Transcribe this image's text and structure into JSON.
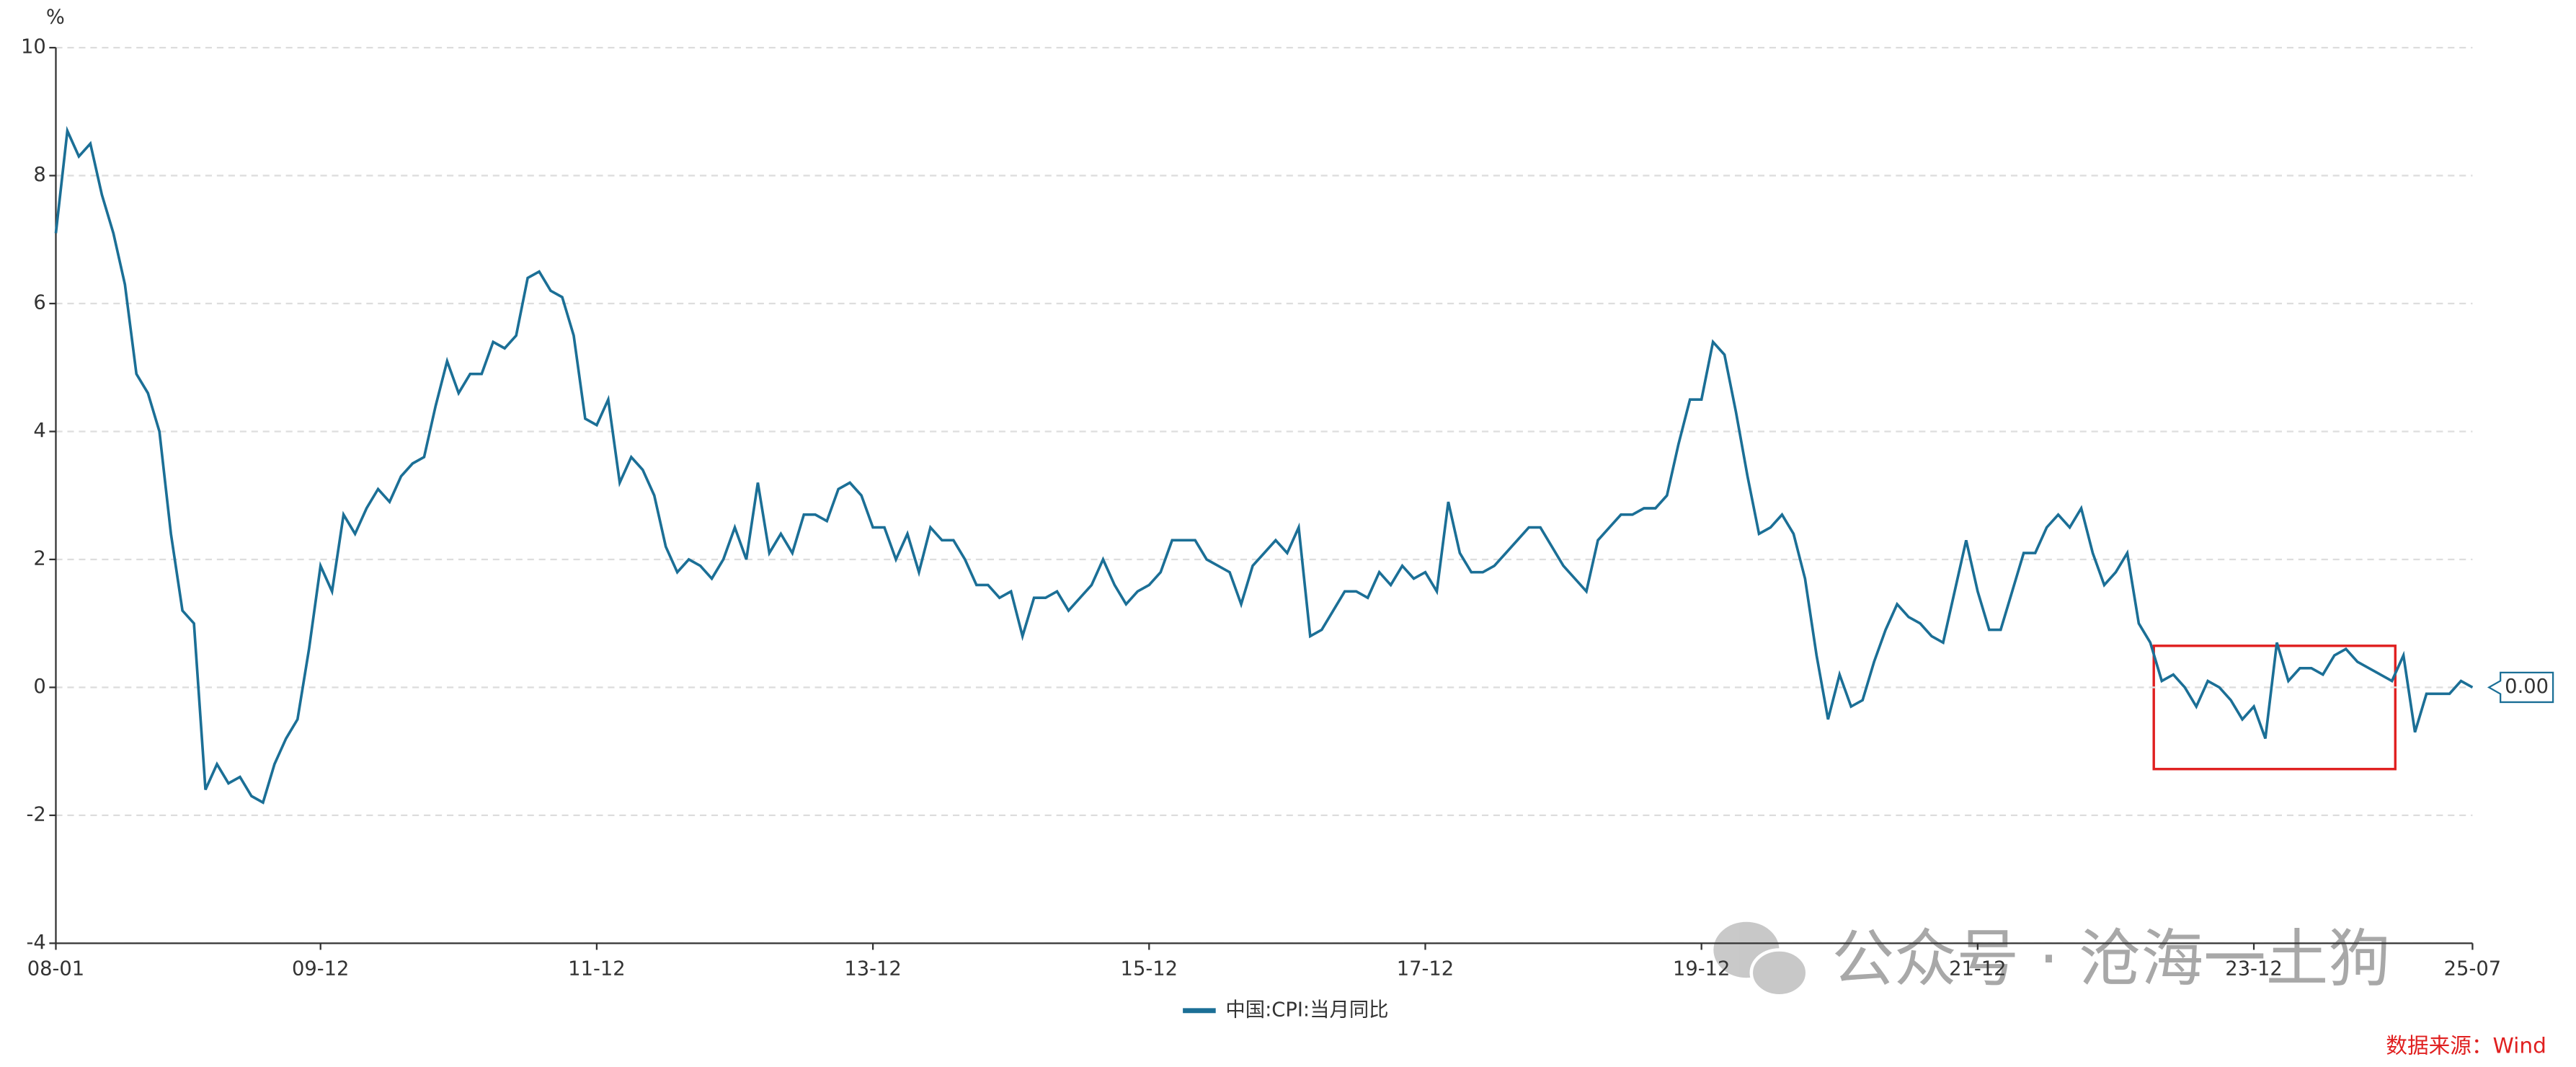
{
  "chart_data": {
    "type": "line",
    "y_unit": "%",
    "categories": [
      "08-01",
      null,
      null,
      null,
      null,
      null,
      null,
      null,
      null,
      null,
      null,
      null,
      null,
      null,
      null,
      null,
      null,
      null,
      null,
      null,
      null,
      null,
      null,
      "09-12",
      null,
      null,
      null,
      null,
      null,
      null,
      null,
      null,
      null,
      null,
      null,
      null,
      null,
      null,
      null,
      null,
      null,
      null,
      null,
      null,
      null,
      null,
      null,
      "11-12",
      null,
      null,
      null,
      null,
      null,
      null,
      null,
      null,
      null,
      null,
      null,
      null,
      null,
      null,
      null,
      null,
      null,
      null,
      null,
      null,
      null,
      null,
      null,
      "13-12",
      null,
      null,
      null,
      null,
      null,
      null,
      null,
      null,
      null,
      null,
      null,
      null,
      null,
      null,
      null,
      null,
      null,
      null,
      null,
      null,
      null,
      null,
      null,
      "15-12",
      null,
      null,
      null,
      null,
      null,
      null,
      null,
      null,
      null,
      null,
      null,
      null,
      null,
      null,
      null,
      null,
      null,
      null,
      null,
      null,
      null,
      null,
      null,
      "17-12",
      null,
      null,
      null,
      null,
      null,
      null,
      null,
      null,
      null,
      null,
      null,
      null,
      null,
      null,
      null,
      null,
      null,
      null,
      null,
      null,
      null,
      null,
      null,
      "19-12",
      null,
      null,
      null,
      null,
      null,
      null,
      null,
      null,
      null,
      null,
      null,
      null,
      null,
      null,
      null,
      null,
      null,
      null,
      null,
      null,
      null,
      null,
      null,
      "21-12",
      null,
      null,
      null,
      null,
      null,
      null,
      null,
      null,
      null,
      null,
      null,
      null,
      null,
      null,
      null,
      null,
      null,
      null,
      null,
      null,
      null,
      null,
      null,
      "23-12",
      null,
      null,
      null,
      null,
      null,
      null,
      null,
      null,
      null,
      null,
      null,
      null,
      null,
      null,
      null,
      null,
      null,
      null,
      "25-07"
    ],
    "series": [
      {
        "name": "中国:CPI:当月同比",
        "color": "#1b6f96",
        "values": [
          7.1,
          8.7,
          8.3,
          8.5,
          7.7,
          7.1,
          6.3,
          4.9,
          4.6,
          4.0,
          2.4,
          1.2,
          1.0,
          -1.6,
          -1.2,
          -1.5,
          -1.4,
          -1.7,
          -1.8,
          -1.2,
          -0.8,
          -0.5,
          0.6,
          1.9,
          1.5,
          2.7,
          2.4,
          2.8,
          3.1,
          2.9,
          3.3,
          3.5,
          3.6,
          4.4,
          5.1,
          4.6,
          4.9,
          4.9,
          5.4,
          5.3,
          5.5,
          6.4,
          6.5,
          6.2,
          6.1,
          5.5,
          4.2,
          4.1,
          4.5,
          3.2,
          3.6,
          3.4,
          3.0,
          2.2,
          1.8,
          2.0,
          1.9,
          1.7,
          2.0,
          2.5,
          2.0,
          3.2,
          2.1,
          2.4,
          2.1,
          2.7,
          2.7,
          2.6,
          3.1,
          3.2,
          3.0,
          2.5,
          2.5,
          2.0,
          2.4,
          1.8,
          2.5,
          2.3,
          2.3,
          2.0,
          1.6,
          1.6,
          1.4,
          1.5,
          0.8,
          1.4,
          1.4,
          1.5,
          1.2,
          1.4,
          1.6,
          2.0,
          1.6,
          1.3,
          1.5,
          1.6,
          1.8,
          2.3,
          2.3,
          2.3,
          2.0,
          1.9,
          1.8,
          1.3,
          1.9,
          2.1,
          2.3,
          2.1,
          2.5,
          0.8,
          0.9,
          1.2,
          1.5,
          1.5,
          1.4,
          1.8,
          1.6,
          1.9,
          1.7,
          1.8,
          1.5,
          2.9,
          2.1,
          1.8,
          1.8,
          1.9,
          2.1,
          2.3,
          2.5,
          2.5,
          2.2,
          1.9,
          1.7,
          1.5,
          2.3,
          2.5,
          2.7,
          2.7,
          2.8,
          2.8,
          3.0,
          3.8,
          4.5,
          4.5,
          5.4,
          5.2,
          4.3,
          3.3,
          2.4,
          2.5,
          2.7,
          2.4,
          1.7,
          0.5,
          -0.5,
          0.2,
          -0.3,
          -0.2,
          0.4,
          0.9,
          1.3,
          1.1,
          1.0,
          0.8,
          0.7,
          1.5,
          2.3,
          1.5,
          0.9,
          0.9,
          1.5,
          2.1,
          2.1,
          2.5,
          2.7,
          2.5,
          2.8,
          2.1,
          1.6,
          1.8,
          2.1,
          1.0,
          0.7,
          0.1,
          0.2,
          0.0,
          -0.3,
          0.1,
          0.0,
          -0.2,
          -0.5,
          -0.3,
          -0.8,
          0.7,
          0.1,
          0.3,
          0.3,
          0.2,
          0.5,
          0.6,
          0.4,
          0.3,
          0.2,
          0.1,
          0.5,
          -0.7,
          -0.1,
          -0.1,
          -0.1,
          0.1,
          0.0
        ],
        "last_value_label": "0.00"
      }
    ],
    "ylim": [
      -4,
      10
    ],
    "yticks": [
      -4,
      -2,
      0,
      2,
      4,
      6,
      8,
      10
    ],
    "grid": true,
    "legend": "bottom",
    "source": "数据来源：Wind",
    "watermark": "公众号 · 沧海一土狗"
  }
}
